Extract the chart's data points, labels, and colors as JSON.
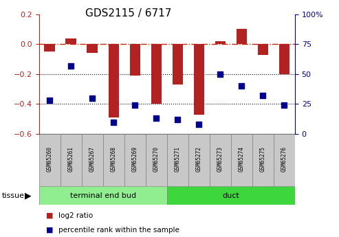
{
  "title": "GDS2115 / 6717",
  "samples": [
    "GSM65260",
    "GSM65261",
    "GSM65267",
    "GSM65268",
    "GSM65269",
    "GSM65270",
    "GSM65271",
    "GSM65272",
    "GSM65273",
    "GSM65274",
    "GSM65275",
    "GSM65276"
  ],
  "log2_ratio": [
    -0.05,
    0.04,
    -0.06,
    -0.49,
    -0.21,
    -0.4,
    -0.27,
    -0.47,
    0.02,
    0.1,
    -0.07,
    -0.2
  ],
  "percentile_rank": [
    28,
    57,
    30,
    10,
    24,
    13,
    12,
    8,
    50,
    40,
    32,
    24
  ],
  "groups": [
    {
      "label": "terminal end bud",
      "start": 0,
      "end": 6,
      "color": "#90ee90"
    },
    {
      "label": "duct",
      "start": 6,
      "end": 12,
      "color": "#3dd63d"
    }
  ],
  "ylim_left": [
    -0.6,
    0.2
  ],
  "ylim_right": [
    0,
    100
  ],
  "yticks_left": [
    -0.6,
    -0.4,
    -0.2,
    0.0,
    0.2
  ],
  "yticks_right": [
    0,
    25,
    50,
    75,
    100
  ],
  "ytick_labels_right": [
    "0",
    "25",
    "50",
    "75",
    "100%"
  ],
  "bar_color": "#b22222",
  "dot_color": "#00008b",
  "hline_color": "#cc2200",
  "dotted_lines": [
    -0.2,
    -0.4
  ],
  "legend_items": [
    {
      "label": "log2 ratio",
      "color": "#b22222"
    },
    {
      "label": "percentile rank within the sample",
      "color": "#00008b"
    }
  ],
  "tissue_label": "tissue",
  "bar_width": 0.5,
  "tick_label_bg": "#c8c8c8",
  "title_fontsize": 11,
  "axis_fontsize": 8,
  "sample_fontsize": 5.5,
  "tissue_fontsize": 8,
  "legend_fontsize": 7.5
}
